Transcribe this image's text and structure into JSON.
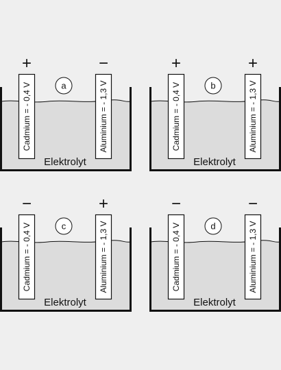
{
  "electrolyte_label": "Elektrolyt",
  "panels": [
    {
      "letter": "a",
      "left_electrode": "Cadmium = - 0,4 V",
      "right_electrode": "Aluminium = - 1,3 V",
      "left_sign": "+",
      "right_sign": "−"
    },
    {
      "letter": "b",
      "left_electrode": "Cadmium = - 0,4 V",
      "right_electrode": "Aluminium = - 1,3 V",
      "left_sign": "+",
      "right_sign": "+"
    },
    {
      "letter": "c",
      "left_electrode": "Cadmium = - 0,4 V",
      "right_electrode": "Aluminium = - 1,3 V",
      "left_sign": "−",
      "right_sign": "+"
    },
    {
      "letter": "d",
      "left_electrode": "Cadmium = - 0,4 V",
      "right_electrode": "Aluminium = - 1,3 V",
      "left_sign": "−",
      "right_sign": "−"
    }
  ],
  "colors": {
    "background": "#efefef",
    "electrolyte": "#dcdcdc",
    "electrode": "#ffffff",
    "stroke": "#111111"
  }
}
